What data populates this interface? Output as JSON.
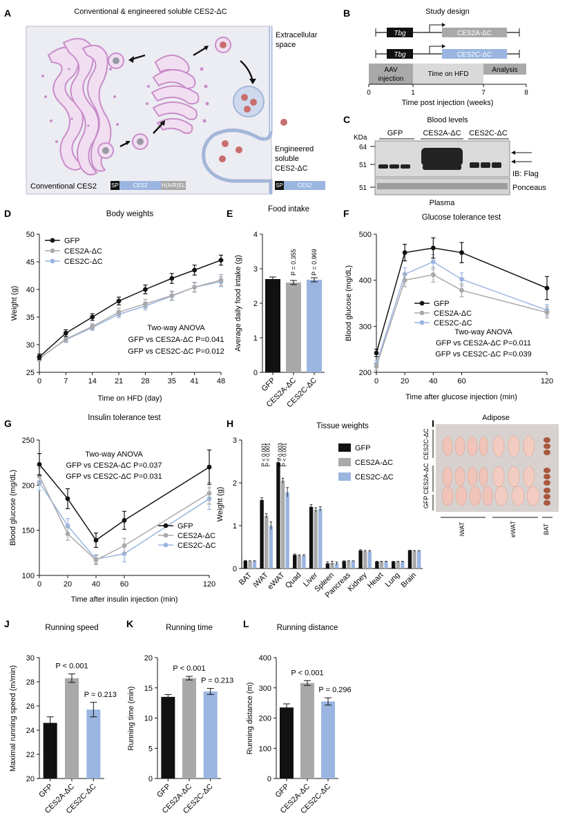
{
  "panel_letters": [
    "A",
    "B",
    "C",
    "D",
    "E",
    "F",
    "G",
    "H",
    "I",
    "J",
    "K",
    "L"
  ],
  "panelA": {
    "title": "Conventional & engineered soluble CES2-ΔC",
    "extracellular": [
      "Extracellular",
      "space"
    ],
    "engineered": [
      "Engineered",
      "soluble",
      "CES2-ΔC"
    ],
    "conventional_label": "Conventional CES2",
    "construct_conv": [
      "SP",
      "CES2",
      "H(A/R)EL"
    ],
    "construct_eng": [
      "SP",
      "CES2"
    ]
  },
  "panelB": {
    "title": "Study design",
    "promoter": "Tbg",
    "constructs": [
      "CES2A-ΔC",
      "CES2C-ΔC"
    ],
    "phases": [
      "AAV",
      "injection",
      "Time on HFD",
      "Analysis"
    ],
    "ticks": [
      "0",
      "1",
      "7",
      "8"
    ],
    "xlabel": "Time post injection (weeks)"
  },
  "panelC": {
    "title": "Blood levels",
    "kda": "KDa",
    "markers": [
      "64",
      "51",
      "51"
    ],
    "groups": [
      "GFP",
      "CES2A-ΔC",
      "CES2C-ΔC"
    ],
    "labels": [
      "IB: Flag",
      "Ponceaus"
    ],
    "bottom": "Plasma"
  },
  "panelI": {
    "title": "Adipose",
    "rows": [
      "CES2C-ΔC",
      "CES2A-ΔC",
      "GFP"
    ],
    "cols": [
      "iWAT",
      "eWAT",
      "BAT"
    ]
  },
  "colors": {
    "gfp": "#111111",
    "ces2a": "#a9a9a9",
    "ces2c": "#9ab5e0",
    "membrane": "#c98cc9",
    "membrane_fill": "#f1dff1",
    "panel_bg": "#ececf3"
  },
  "chart_data": [
    {
      "id": "D",
      "type": "line",
      "title": "Body weights",
      "xlabel": "Time on HFD (day)",
      "ylabel": "Weight (g)",
      "x": [
        0,
        7,
        14,
        21,
        28,
        35,
        41,
        48
      ],
      "xlim": [
        0,
        48
      ],
      "ylim": [
        25,
        50
      ],
      "xticks": [
        "0",
        "7",
        "14",
        "21",
        "28",
        "35",
        "41",
        "48"
      ],
      "yticks": [
        "25",
        "30",
        "35",
        "40",
        "45",
        "50"
      ],
      "series": [
        {
          "name": "GFP",
          "values": [
            27.8,
            32.1,
            35.0,
            37.9,
            40.0,
            42.0,
            43.5,
            45.3
          ],
          "err": [
            0.5,
            0.6,
            0.6,
            0.7,
            0.8,
            0.9,
            0.9,
            0.9
          ]
        },
        {
          "name": "CES2A-ΔC",
          "values": [
            27.5,
            31.0,
            33.3,
            35.9,
            37.4,
            38.9,
            40.4,
            41.7
          ],
          "err": [
            0.5,
            0.5,
            0.5,
            0.7,
            0.8,
            0.8,
            0.9,
            1.0
          ]
        },
        {
          "name": "CES2C-ΔC",
          "values": [
            27.6,
            30.9,
            33.1,
            35.5,
            37.0,
            38.8,
            40.4,
            41.4
          ],
          "err": [
            0.4,
            0.5,
            0.5,
            0.6,
            0.7,
            0.8,
            0.8,
            0.9
          ]
        }
      ],
      "stats": [
        "Two-way ANOVA",
        "GFP vs CES2A-ΔC  P=0.041",
        "GFP vs CES2C-ΔC  P=0.012"
      ]
    },
    {
      "id": "E",
      "type": "bar",
      "title": "Food intake",
      "ylabel": "Average daily food intake (g)",
      "ylim": [
        0,
        4
      ],
      "yticks": [
        "0",
        "1",
        "2",
        "3",
        "4"
      ],
      "categories": [
        "GFP",
        "CES2A-ΔC",
        "CES2C-ΔC"
      ],
      "values": [
        2.7,
        2.6,
        2.68
      ],
      "err": [
        0.06,
        0.06,
        0.06
      ],
      "pvalues": [
        "",
        "P = 0.355",
        "P = 0.969"
      ]
    },
    {
      "id": "F",
      "type": "line",
      "title": "Glucose tolerance test",
      "xlabel": "Time after glucose injection (min)",
      "ylabel": "Blood glucose (mg/dL)",
      "x": [
        0,
        20,
        40,
        60,
        120
      ],
      "xlim": [
        0,
        120
      ],
      "ylim": [
        200,
        500
      ],
      "xticks": [
        "0",
        "20",
        "40",
        "60",
        "120"
      ],
      "yticks": [
        "200",
        "300",
        "400",
        "500"
      ],
      "series": [
        {
          "name": "GFP",
          "values": [
            242,
            460,
            470,
            460,
            383
          ],
          "err": [
            8,
            18,
            22,
            22,
            25
          ]
        },
        {
          "name": "CES2A-ΔC",
          "values": [
            213,
            400,
            412,
            378,
            330
          ],
          "err": [
            8,
            14,
            16,
            14,
            12
          ]
        },
        {
          "name": "CES2C-ΔC",
          "values": [
            218,
            413,
            440,
            402,
            335
          ],
          "err": [
            8,
            14,
            16,
            14,
            12
          ]
        }
      ],
      "stats": [
        "Two-way ANOVA",
        "GFP vs CES2A-ΔC P=0.011",
        "GFP vs CES2C-ΔC P=0.039"
      ]
    },
    {
      "id": "G",
      "type": "line",
      "title": "Insulin tolerance test",
      "xlabel": "Time after insulin injection (min)",
      "ylabel": "Blood glucose (mg/dL)",
      "x": [
        0,
        20,
        40,
        60,
        120
      ],
      "xlim": [
        0,
        120
      ],
      "ylim": [
        100,
        250
      ],
      "xticks": [
        "0",
        "20",
        "40",
        "60",
        "120"
      ],
      "yticks": [
        "100",
        "150",
        "200",
        "250"
      ],
      "series": [
        {
          "name": "GFP",
          "values": [
            223,
            185,
            139,
            161,
            220
          ],
          "err": [
            12,
            11,
            8,
            10,
            19
          ]
        },
        {
          "name": "CES2A-ΔC",
          "values": [
            210,
            146,
            117,
            133,
            191
          ],
          "err": [
            9,
            7,
            5,
            8,
            12
          ]
        },
        {
          "name": "CES2C-ΔC",
          "values": [
            203,
            155,
            118,
            124,
            185
          ],
          "err": [
            9,
            8,
            5,
            9,
            12
          ]
        }
      ],
      "stats": [
        "Two-way ANOVA",
        "GFP vs CES2A-ΔC   P=0.037",
        "GFP vs CES2C-ΔC   P=0.031"
      ]
    },
    {
      "id": "H",
      "type": "bar",
      "title": "Tissue weights",
      "ylabel": "Weight (g)",
      "ylim": [
        0,
        3
      ],
      "yticks": [
        "0",
        "1",
        "2",
        "3"
      ],
      "categories": [
        "BAT",
        "iWAT",
        "eWAT",
        "Quad",
        "Liver",
        "Spleen",
        "Pancreas",
        "Kidney",
        "Heart",
        "Lung",
        "Brain"
      ],
      "series": [
        {
          "name": "GFP",
          "values": [
            0.18,
            1.6,
            2.48,
            0.32,
            1.44,
            0.12,
            0.17,
            0.42,
            0.16,
            0.16,
            0.42
          ],
          "err": [
            0.01,
            0.05,
            0.09,
            0.02,
            0.05,
            0.04,
            0.01,
            0.02,
            0.01,
            0.01,
            0.01
          ]
        },
        {
          "name": "CES2A-ΔC",
          "values": [
            0.17,
            1.23,
            2.05,
            0.3,
            1.37,
            0.13,
            0.17,
            0.4,
            0.16,
            0.16,
            0.41
          ],
          "err": [
            0.01,
            0.05,
            0.06,
            0.02,
            0.05,
            0.04,
            0.01,
            0.02,
            0.01,
            0.01,
            0.01
          ]
        },
        {
          "name": "CES2C-ΔC",
          "values": [
            0.17,
            1.0,
            1.78,
            0.3,
            1.39,
            0.12,
            0.17,
            0.4,
            0.16,
            0.16,
            0.41
          ],
          "err": [
            0.01,
            0.09,
            0.11,
            0.02,
            0.05,
            0.03,
            0.01,
            0.02,
            0.01,
            0.01,
            0.01
          ]
        }
      ],
      "pvalues": {
        "iWAT": [
          "P < 0.001",
          "P < 0.001"
        ],
        "eWAT": [
          "P = 0.003",
          "P < 0.001"
        ]
      }
    },
    {
      "id": "J",
      "type": "bar",
      "title": "Running speed",
      "ylabel": "Maximal running speed (m/min)",
      "ylim": [
        20,
        30
      ],
      "yticks": [
        "20",
        "22",
        "24",
        "26",
        "28",
        "30"
      ],
      "categories": [
        "GFP",
        "CES2A-ΔC",
        "CES2C-ΔC"
      ],
      "values": [
        24.6,
        28.3,
        25.7
      ],
      "err": [
        0.5,
        0.35,
        0.6
      ],
      "pvalues": [
        "",
        "P < 0.001",
        "P = 0.213"
      ]
    },
    {
      "id": "K",
      "type": "bar",
      "title": "Running time",
      "ylabel": "Running time (min)",
      "ylim": [
        0,
        20
      ],
      "yticks": [
        "0",
        "5",
        "10",
        "15",
        "20"
      ],
      "categories": [
        "GFP",
        "CES2A-ΔC",
        "CES2C-ΔC"
      ],
      "values": [
        13.5,
        16.6,
        14.4
      ],
      "err": [
        0.4,
        0.3,
        0.5
      ],
      "pvalues": [
        "",
        "P < 0.001",
        "P = 0.213"
      ]
    },
    {
      "id": "L",
      "type": "bar",
      "title": "Running distance",
      "ylabel": "Running distance (m)",
      "ylim": [
        0,
        400
      ],
      "yticks": [
        "0",
        "100",
        "200",
        "300",
        "400"
      ],
      "categories": [
        "GFP",
        "CES2A-ΔC",
        "CES2C-ΔC"
      ],
      "values": [
        235,
        316,
        255
      ],
      "err": [
        12,
        8,
        12
      ],
      "pvalues": [
        "",
        "P < 0.001",
        "P = 0.296"
      ]
    }
  ]
}
